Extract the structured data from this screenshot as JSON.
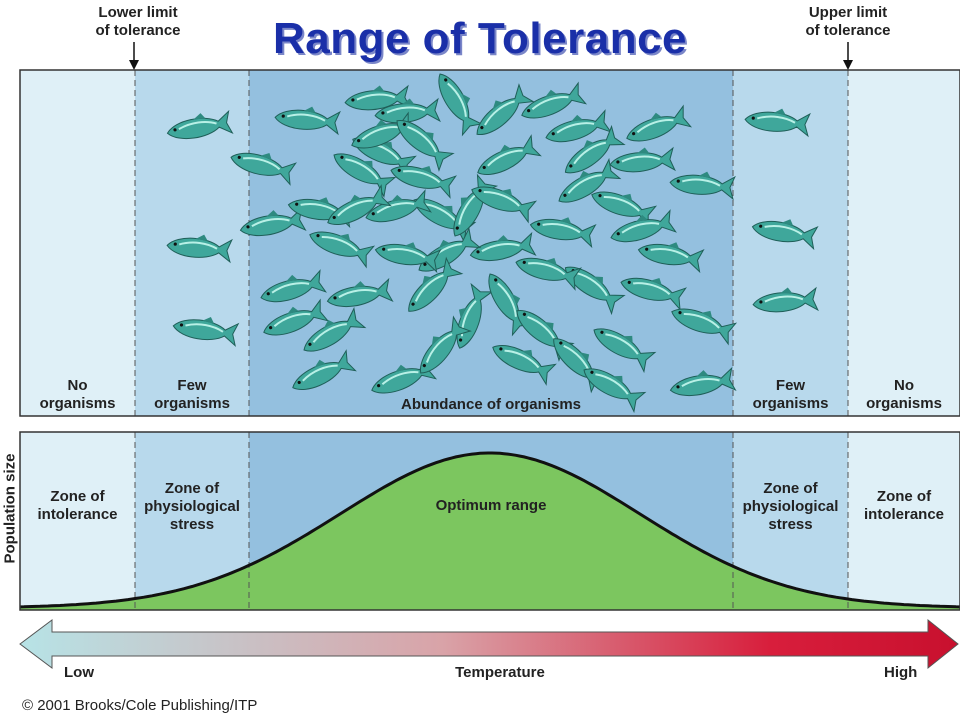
{
  "title": "Range of Tolerance",
  "lower_limit_label": [
    "Lower limit",
    "of tolerance"
  ],
  "upper_limit_label": [
    "Upper limit",
    "of tolerance"
  ],
  "top_panel": {
    "left_none": [
      "No",
      "organisms"
    ],
    "left_few": [
      "Few",
      "organisms"
    ],
    "center": "Abundance of organisms",
    "right_few": [
      "Few",
      "organisms"
    ],
    "right_none": [
      "No",
      "organisms"
    ]
  },
  "bottom_panel": {
    "y_axis_label": "Population size",
    "left_intolerance": [
      "Zone of",
      "intolerance"
    ],
    "left_stress": [
      "Zone of",
      "physiological",
      "stress"
    ],
    "optimum": "Optimum range",
    "right_stress": [
      "Zone of",
      "physiological",
      "stress"
    ],
    "right_intolerance": [
      "Zone of",
      "intolerance"
    ]
  },
  "temperature_axis": {
    "low": "Low",
    "label": "Temperature",
    "high": "High"
  },
  "copyright": "© 2001 Brooks/Cole Publishing/ITP",
  "colors": {
    "zone_outer": "#dff0f7",
    "zone_stress": "#b8d9ec",
    "zone_optimum": "#94c0df",
    "curve_fill": "#7cc65f",
    "fish": "#3fa79b",
    "title": "#1a2fa8"
  }
}
